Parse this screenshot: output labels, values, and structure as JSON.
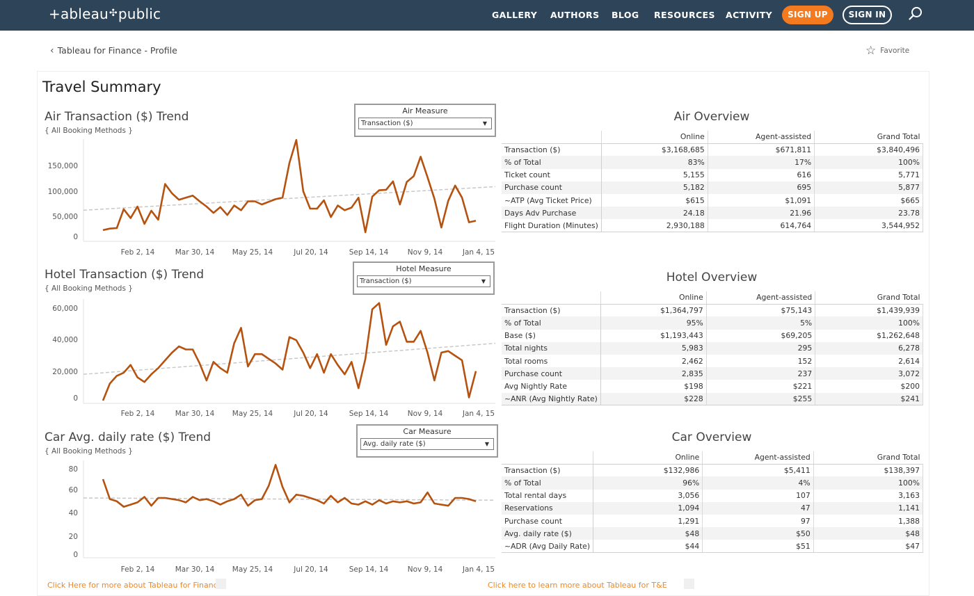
{
  "nav": {
    "logo": "+ableau+public",
    "logo_left": "+ableau",
    "logo_right": "public",
    "links": [
      "GALLERY",
      "AUTHORS",
      "BLOG",
      "RESOURCES",
      "ACTIVITY"
    ],
    "signup": "SIGN UP",
    "signin": "SIGN IN",
    "colors": {
      "bar": "#2e4459",
      "signup": "#f47a1f"
    }
  },
  "breadcrumb": "Tableau for Finance - Profile",
  "favorite": "Favorite",
  "dashboard_title": "Travel Summary",
  "charts": [
    {
      "title": "Air Transaction ($) Trend",
      "subtitle": "{ All Booking Methods }",
      "measure_label": "Air Measure",
      "measure_value": "Transaction ($)"
    },
    {
      "title": "Hotel Transaction ($) Trend",
      "subtitle": "{ All Booking Methods }",
      "measure_label": "Hotel Measure",
      "measure_value": "Transaction ($)"
    },
    {
      "title": "Car Avg. daily rate ($) Trend",
      "subtitle": "{ All Booking Methods }",
      "measure_label": "Car Measure",
      "measure_value": "Avg. daily rate ($)"
    }
  ],
  "chart_data": [
    {
      "type": "line",
      "x_ticks": [
        "Feb 2, 14",
        "Mar 30, 14",
        "May 25, 14",
        "Jul 20, 14",
        "Sep 14, 14",
        "Nov 9, 14",
        "Jan 4, 15"
      ],
      "y_ticks": [
        "150,000",
        "100,000",
        "50,000",
        "0"
      ],
      "ylim": [
        0,
        175000
      ],
      "line_color": "#b5520f",
      "trend": [
        50000,
        95000
      ],
      "values": [
        12000,
        15000,
        16000,
        52000,
        35000,
        57000,
        24000,
        49000,
        32000,
        100000,
        82000,
        70000,
        74000,
        78000,
        67000,
        57000,
        45000,
        56000,
        41000,
        59000,
        50000,
        67000,
        67000,
        61000,
        66000,
        71000,
        74000,
        140000,
        184000,
        86000,
        53000,
        53000,
        69000,
        37000,
        59000,
        50000,
        55000,
        74000,
        8000,
        76000,
        88000,
        89000,
        105000,
        61000,
        104000,
        115000,
        152000,
        113000,
        72000,
        17000,
        68000,
        97000,
        74000,
        27000,
        30000
      ]
    },
    {
      "type": "line",
      "x_ticks": [
        "Feb 2, 14",
        "Mar 30, 14",
        "May 25, 14",
        "Jul 20, 14",
        "Sep 14, 14",
        "Nov 9, 14",
        "Jan 4, 15"
      ],
      "y_ticks": [
        "60,000",
        "40,000",
        "20,000",
        "0"
      ],
      "ylim": [
        0,
        62000
      ],
      "line_color": "#b5520f",
      "trend": [
        17000,
        37000
      ],
      "values": [
        0,
        11000,
        16000,
        18000,
        23000,
        15000,
        12000,
        17000,
        21000,
        26000,
        31000,
        35000,
        33000,
        33000,
        24000,
        13000,
        25000,
        21000,
        18000,
        37000,
        47000,
        22000,
        30000,
        30000,
        27000,
        24000,
        20000,
        41000,
        39000,
        31000,
        21000,
        30000,
        18000,
        30000,
        23000,
        17000,
        25000,
        8000,
        27000,
        59000,
        63000,
        36000,
        48000,
        51000,
        38000,
        38000,
        45000,
        31000,
        13000,
        31000,
        32000,
        29000,
        26000,
        2000,
        19000
      ]
    },
    {
      "type": "line",
      "x_ticks": [
        "Feb 2, 14",
        "Mar 30, 14",
        "May 25, 14",
        "Jul 20, 14",
        "Sep 14, 14",
        "Nov 9, 14",
        "Jan 4, 15"
      ],
      "y_ticks": [
        "80",
        "60",
        "40",
        "20",
        "0"
      ],
      "ylim": [
        0,
        80
      ],
      "line_color": "#b5520f",
      "trend": [
        51,
        49
      ],
      "values": [
        68,
        50,
        48,
        43,
        45,
        47,
        52,
        44,
        51,
        51,
        50,
        49,
        47,
        52,
        49,
        50,
        48,
        45,
        48,
        50,
        54,
        44,
        49,
        50,
        62,
        81,
        61,
        47,
        54,
        53,
        51,
        49,
        46,
        53,
        47,
        51,
        46,
        45,
        48,
        45,
        49,
        46,
        48,
        47,
        48,
        46,
        47,
        56,
        46,
        45,
        44,
        51,
        51,
        50,
        48
      ]
    }
  ],
  "tables": [
    {
      "title": "Air Overview",
      "columns": [
        "Online",
        "Agent-assisted",
        "Grand Total"
      ],
      "rows": [
        {
          "label": "Transaction ($)",
          "values": [
            "$3,168,685",
            "$671,811",
            "$3,840,496"
          ]
        },
        {
          "label": "% of Total",
          "values": [
            "83%",
            "17%",
            "100%"
          ]
        },
        {
          "label": "Ticket count",
          "values": [
            "5,155",
            "616",
            "5,771"
          ]
        },
        {
          "label": "Purchase count",
          "values": [
            "5,182",
            "695",
            "5,877"
          ]
        },
        {
          "label": "~ATP (Avg Ticket Price)",
          "values": [
            "$615",
            "$1,091",
            "$665"
          ]
        },
        {
          "label": "Days Adv Purchase",
          "values": [
            "24.18",
            "21.96",
            "23.78"
          ]
        },
        {
          "label": "Flight Duration (Minutes)",
          "values": [
            "2,930,188",
            "614,764",
            "3,544,952"
          ]
        }
      ]
    },
    {
      "title": "Hotel Overview",
      "columns": [
        "Online",
        "Agent-assisted",
        "Grand Total"
      ],
      "rows": [
        {
          "label": "Transaction ($)",
          "values": [
            "$1,364,797",
            "$75,143",
            "$1,439,939"
          ]
        },
        {
          "label": "% of Total",
          "values": [
            "95%",
            "5%",
            "100%"
          ]
        },
        {
          "label": "Base ($)",
          "values": [
            "$1,193,443",
            "$69,205",
            "$1,262,648"
          ]
        },
        {
          "label": "Total nights",
          "values": [
            "5,983",
            "295",
            "6,278"
          ]
        },
        {
          "label": "Total rooms",
          "values": [
            "2,462",
            "152",
            "2,614"
          ]
        },
        {
          "label": "Purchase count",
          "values": [
            "2,835",
            "237",
            "3,072"
          ]
        },
        {
          "label": "Avg Nightly Rate",
          "values": [
            "$198",
            "$221",
            "$200"
          ]
        },
        {
          "label": "~ANR (Avg Nightly Rate)",
          "values": [
            "$228",
            "$255",
            "$241"
          ]
        }
      ]
    },
    {
      "title": "Car Overview",
      "columns": [
        "Online",
        "Agent-assisted",
        "Grand Total"
      ],
      "rows": [
        {
          "label": "Transaction ($)",
          "values": [
            "$132,986",
            "$5,411",
            "$138,397"
          ]
        },
        {
          "label": "% of Total",
          "values": [
            "96%",
            "4%",
            "100%"
          ]
        },
        {
          "label": "Total rental days",
          "values": [
            "3,056",
            "107",
            "3,163"
          ]
        },
        {
          "label": "Reservations",
          "values": [
            "1,094",
            "47",
            "1,141"
          ]
        },
        {
          "label": "Purchase count",
          "values": [
            "1,291",
            "97",
            "1,388"
          ]
        },
        {
          "label": "Avg. daily rate ($)",
          "values": [
            "$48",
            "$50",
            "$48"
          ]
        },
        {
          "label": "~ADR (Avg Daily Rate)",
          "values": [
            "$44",
            "$51",
            "$47"
          ]
        }
      ]
    }
  ],
  "footer": {
    "left_link": "Click Here for more about Tableau for Finance",
    "right_link": "Click here to learn more about Tableau for T&E"
  }
}
